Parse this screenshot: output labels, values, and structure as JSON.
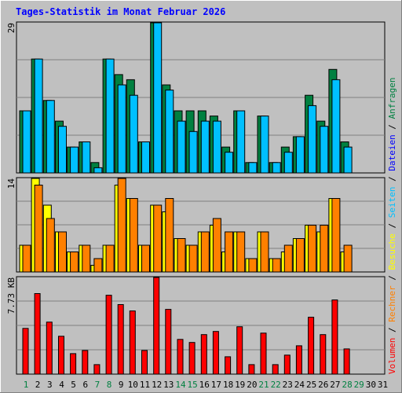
{
  "title": "Tages-Statistik im Monat Februar 2026",
  "colors": {
    "background": "#C0C0C0",
    "frame_light": "#FFFFFF",
    "frame_dark": "#808080",
    "title": "#0000FF",
    "gridline": "#808080",
    "anfragen": "#008040",
    "dateien": "#0000FF",
    "seiten": "#00C0FF",
    "besuche": "#FFFF00",
    "rechner": "#FF8000",
    "volumen": "#FF0000",
    "weekday_label": "#000000",
    "weekend_label": "#008040"
  },
  "chart_data": [
    {
      "type": "bar",
      "panel": "top",
      "ymax_label": "29",
      "ylim": [
        0,
        29
      ],
      "categories": [
        "1",
        "2",
        "3",
        "4",
        "5",
        "6",
        "7",
        "8",
        "9",
        "10",
        "11",
        "12",
        "13",
        "14",
        "15",
        "16",
        "17",
        "18",
        "19",
        "20",
        "21",
        "22",
        "23",
        "24",
        "25",
        "26",
        "27",
        "28",
        "29",
        "30",
        "31"
      ],
      "series": [
        {
          "name": "Anfragen",
          "color": "#008040",
          "values": [
            12,
            22,
            14,
            10,
            5,
            6,
            2,
            22,
            19,
            18,
            6,
            29,
            17,
            12,
            12,
            12,
            11,
            5,
            12,
            2,
            11,
            2,
            5,
            7,
            15,
            10,
            20,
            6,
            null,
            null,
            null
          ]
        },
        {
          "name": "Seiten",
          "color": "#00C0FF",
          "values": [
            12,
            22,
            14,
            9,
            5,
            6,
            1,
            22,
            17,
            15,
            6,
            29,
            16,
            10,
            8,
            10,
            10,
            4,
            12,
            2,
            11,
            2,
            4,
            7,
            13,
            9,
            18,
            5,
            null,
            null,
            null
          ]
        }
      ],
      "legend_position": "right-vertical"
    },
    {
      "type": "bar",
      "panel": "middle",
      "ymax_label": "14",
      "ylim": [
        0,
        14
      ],
      "categories": [
        "1",
        "2",
        "3",
        "4",
        "5",
        "6",
        "7",
        "8",
        "9",
        "10",
        "11",
        "12",
        "13",
        "14",
        "15",
        "16",
        "17",
        "18",
        "19",
        "20",
        "21",
        "22",
        "23",
        "24",
        "25",
        "26",
        "27",
        "28",
        "29",
        "30",
        "31"
      ],
      "series": [
        {
          "name": "Besuche",
          "color": "#FFFF00",
          "values": [
            4,
            14,
            10,
            6,
            3,
            4,
            1,
            4,
            13,
            11,
            4,
            10,
            9,
            5,
            4,
            6,
            7,
            3,
            6,
            2,
            6,
            2,
            3,
            5,
            7,
            6,
            11,
            3,
            null,
            null,
            null
          ]
        },
        {
          "name": "Rechner",
          "color": "#FF8000",
          "values": [
            4,
            13,
            8,
            6,
            3,
            4,
            2,
            4,
            14,
            11,
            4,
            10,
            11,
            5,
            4,
            6,
            8,
            6,
            6,
            2,
            6,
            2,
            4,
            5,
            7,
            7,
            11,
            4,
            null,
            null,
            null
          ]
        }
      ],
      "legend_position": "right-vertical"
    },
    {
      "type": "bar",
      "panel": "bottom",
      "ymax_label": "7.73 KB",
      "ylim": [
        0,
        7.73
      ],
      "categories": [
        "1",
        "2",
        "3",
        "4",
        "5",
        "6",
        "7",
        "8",
        "9",
        "10",
        "11",
        "12",
        "13",
        "14",
        "15",
        "16",
        "17",
        "18",
        "19",
        "20",
        "21",
        "22",
        "23",
        "24",
        "25",
        "26",
        "27",
        "28",
        "29",
        "30",
        "31"
      ],
      "series": [
        {
          "name": "Volumen",
          "color": "#FF0000",
          "values": [
            3.66,
            6.44,
            4.16,
            3.03,
            1.64,
            1.89,
            0.76,
            6.31,
            5.56,
            5.05,
            1.89,
            7.73,
            5.18,
            2.78,
            2.53,
            3.16,
            3.41,
            1.39,
            3.79,
            0.76,
            3.28,
            0.76,
            1.52,
            2.27,
            4.55,
            3.16,
            5.93,
            2.02,
            null,
            null,
            null
          ]
        }
      ],
      "legend_position": "right-vertical"
    }
  ],
  "x_axis": {
    "labels": [
      "1",
      "2",
      "3",
      "4",
      "5",
      "6",
      "7",
      "8",
      "9",
      "10",
      "11",
      "12",
      "13",
      "14",
      "15",
      "16",
      "17",
      "18",
      "19",
      "20",
      "21",
      "22",
      "23",
      "24",
      "25",
      "26",
      "27",
      "28",
      "29",
      "30",
      "31"
    ],
    "weekend_days": [
      "1",
      "7",
      "8",
      "14",
      "15",
      "21",
      "22",
      "28",
      "29"
    ]
  },
  "legend": [
    {
      "name": "Volumen",
      "color": "#FF0000"
    },
    {
      "sep": " / "
    },
    {
      "name": "Rechner",
      "color": "#FF8000"
    },
    {
      "sep": " / "
    },
    {
      "name": "Besuche",
      "color": "#FFFF00"
    },
    {
      "sep": " / "
    },
    {
      "name": "Seiten",
      "color": "#00C0FF"
    },
    {
      "sep": " / "
    },
    {
      "name": "Dateien",
      "color": "#0000FF"
    },
    {
      "sep": " / "
    },
    {
      "name": "Anfragen",
      "color": "#008040"
    }
  ]
}
